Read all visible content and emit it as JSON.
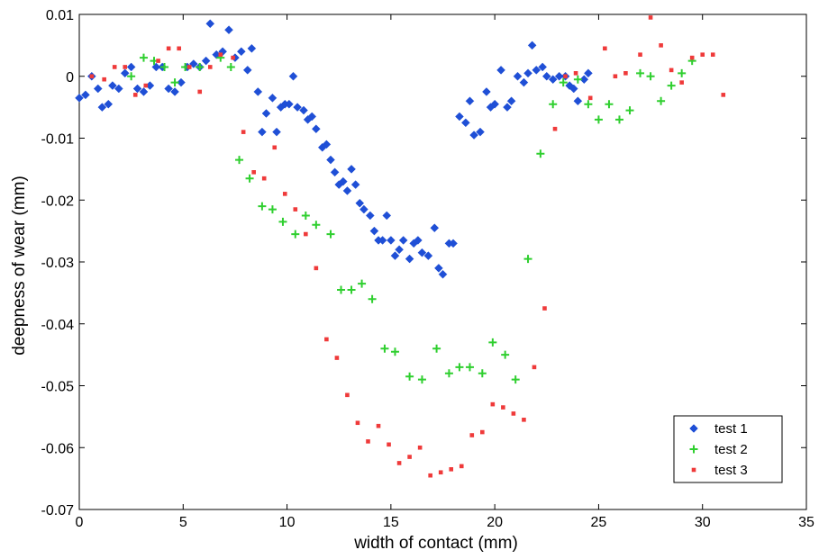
{
  "chart_data": {
    "type": "scatter",
    "title": "",
    "xlabel": "width of contact (mm)",
    "ylabel": "deepness of wear (mm)",
    "xlim": [
      0,
      35
    ],
    "ylim": [
      -0.07,
      0.01
    ],
    "xticks": [
      0,
      5,
      10,
      15,
      20,
      25,
      30,
      35
    ],
    "xtick_labels": [
      "0",
      "5",
      "10",
      "15",
      "20",
      "25",
      "30",
      "35"
    ],
    "yticks": [
      0.01,
      0,
      -0.01,
      -0.02,
      -0.03,
      -0.04,
      -0.05,
      -0.06,
      -0.07
    ],
    "ytick_labels": [
      "0.01",
      "0",
      "-0.01",
      "-0.02",
      "-0.03",
      "-0.04",
      "-0.05",
      "-0.06",
      "-0.07"
    ],
    "grid": false,
    "legend_position": "bottom-right",
    "series": [
      {
        "name": "test 1",
        "color": "#1f4fd6",
        "marker": "diamond",
        "points": [
          [
            0.0,
            -0.0035
          ],
          [
            0.3,
            -0.003
          ],
          [
            0.6,
            0.0
          ],
          [
            0.9,
            -0.002
          ],
          [
            1.1,
            -0.005
          ],
          [
            1.4,
            -0.0045
          ],
          [
            1.6,
            -0.0015
          ],
          [
            1.9,
            -0.002
          ],
          [
            2.2,
            0.0005
          ],
          [
            2.5,
            0.0015
          ],
          [
            2.8,
            -0.002
          ],
          [
            3.1,
            -0.0025
          ],
          [
            3.4,
            -0.0015
          ],
          [
            3.7,
            0.0015
          ],
          [
            4.0,
            0.0015
          ],
          [
            4.3,
            -0.002
          ],
          [
            4.6,
            -0.0025
          ],
          [
            4.9,
            -0.001
          ],
          [
            5.2,
            0.0015
          ],
          [
            5.5,
            0.002
          ],
          [
            5.8,
            0.0015
          ],
          [
            6.1,
            0.0025
          ],
          [
            6.3,
            0.0085
          ],
          [
            6.6,
            0.0035
          ],
          [
            6.9,
            0.004
          ],
          [
            7.2,
            0.0075
          ],
          [
            7.5,
            0.003
          ],
          [
            7.8,
            0.004
          ],
          [
            8.1,
            0.001
          ],
          [
            8.3,
            0.0045
          ],
          [
            8.6,
            -0.0025
          ],
          [
            8.8,
            -0.009
          ],
          [
            9.0,
            -0.006
          ],
          [
            9.3,
            -0.0035
          ],
          [
            9.5,
            -0.009
          ],
          [
            9.7,
            -0.005
          ],
          [
            9.9,
            -0.0045
          ],
          [
            10.1,
            -0.0045
          ],
          [
            10.3,
            0.0
          ],
          [
            10.5,
            -0.005
          ],
          [
            10.8,
            -0.0055
          ],
          [
            11.0,
            -0.007
          ],
          [
            11.2,
            -0.0065
          ],
          [
            11.4,
            -0.0085
          ],
          [
            11.7,
            -0.0115
          ],
          [
            11.9,
            -0.011
          ],
          [
            12.1,
            -0.0135
          ],
          [
            12.3,
            -0.0155
          ],
          [
            12.5,
            -0.0175
          ],
          [
            12.7,
            -0.017
          ],
          [
            12.9,
            -0.0185
          ],
          [
            13.1,
            -0.015
          ],
          [
            13.3,
            -0.0175
          ],
          [
            13.5,
            -0.0205
          ],
          [
            13.7,
            -0.0215
          ],
          [
            14.0,
            -0.0225
          ],
          [
            14.2,
            -0.025
          ],
          [
            14.4,
            -0.0265
          ],
          [
            14.6,
            -0.0265
          ],
          [
            14.8,
            -0.0225
          ],
          [
            15.0,
            -0.0265
          ],
          [
            15.2,
            -0.029
          ],
          [
            15.4,
            -0.028
          ],
          [
            15.6,
            -0.0265
          ],
          [
            15.9,
            -0.0295
          ],
          [
            16.1,
            -0.027
          ],
          [
            16.3,
            -0.0265
          ],
          [
            16.5,
            -0.0285
          ],
          [
            16.8,
            -0.029
          ],
          [
            17.1,
            -0.0245
          ],
          [
            17.3,
            -0.031
          ],
          [
            17.5,
            -0.032
          ],
          [
            17.8,
            -0.027
          ],
          [
            18.0,
            -0.027
          ],
          [
            18.3,
            -0.0065
          ],
          [
            18.6,
            -0.0075
          ],
          [
            18.8,
            -0.004
          ],
          [
            19.0,
            -0.0095
          ],
          [
            19.3,
            -0.009
          ],
          [
            19.6,
            -0.0025
          ],
          [
            19.8,
            -0.005
          ],
          [
            20.0,
            -0.0045
          ],
          [
            20.3,
            0.001
          ],
          [
            20.6,
            -0.005
          ],
          [
            20.8,
            -0.004
          ],
          [
            21.1,
            0.0
          ],
          [
            21.4,
            -0.001
          ],
          [
            21.6,
            0.0005
          ],
          [
            21.8,
            0.005
          ],
          [
            22.0,
            0.001
          ],
          [
            22.3,
            0.0015
          ],
          [
            22.5,
            0.0
          ],
          [
            22.8,
            -0.0005
          ],
          [
            23.1,
            0.0
          ],
          [
            23.4,
            0.0
          ],
          [
            23.6,
            -0.0015
          ],
          [
            23.8,
            -0.002
          ],
          [
            24.0,
            -0.004
          ],
          [
            24.3,
            -0.0005
          ],
          [
            24.5,
            0.0005
          ]
        ]
      },
      {
        "name": "test 2",
        "color": "#2fcf2f",
        "marker": "plus",
        "points": [
          [
            2.5,
            0.0
          ],
          [
            3.1,
            0.003
          ],
          [
            3.6,
            0.0025
          ],
          [
            4.1,
            0.0015
          ],
          [
            4.6,
            -0.001
          ],
          [
            5.1,
            0.0015
          ],
          [
            5.8,
            0.0015
          ],
          [
            6.8,
            0.003
          ],
          [
            7.3,
            0.0015
          ],
          [
            7.7,
            -0.0135
          ],
          [
            8.2,
            -0.0165
          ],
          [
            8.8,
            -0.021
          ],
          [
            9.3,
            -0.0215
          ],
          [
            9.8,
            -0.0235
          ],
          [
            10.4,
            -0.0255
          ],
          [
            10.9,
            -0.0225
          ],
          [
            11.4,
            -0.024
          ],
          [
            12.1,
            -0.0255
          ],
          [
            12.6,
            -0.0345
          ],
          [
            13.1,
            -0.0345
          ],
          [
            13.6,
            -0.0335
          ],
          [
            14.1,
            -0.036
          ],
          [
            14.7,
            -0.044
          ],
          [
            15.2,
            -0.0445
          ],
          [
            15.9,
            -0.0485
          ],
          [
            16.5,
            -0.049
          ],
          [
            17.2,
            -0.044
          ],
          [
            17.8,
            -0.048
          ],
          [
            18.3,
            -0.047
          ],
          [
            18.8,
            -0.047
          ],
          [
            19.4,
            -0.048
          ],
          [
            19.9,
            -0.043
          ],
          [
            20.5,
            -0.045
          ],
          [
            21.0,
            -0.049
          ],
          [
            21.6,
            -0.0295
          ],
          [
            22.2,
            -0.0125
          ],
          [
            22.8,
            -0.0045
          ],
          [
            23.3,
            -0.001
          ],
          [
            24.0,
            -0.0005
          ],
          [
            24.5,
            -0.0045
          ],
          [
            25.0,
            -0.007
          ],
          [
            25.5,
            -0.0045
          ],
          [
            26.0,
            -0.007
          ],
          [
            26.5,
            -0.0055
          ],
          [
            27.0,
            0.0005
          ],
          [
            27.5,
            0.0
          ],
          [
            28.0,
            -0.004
          ],
          [
            28.5,
            -0.0015
          ],
          [
            29.0,
            0.0005
          ],
          [
            29.5,
            0.0025
          ]
        ]
      },
      {
        "name": "test 3",
        "color": "#ef3a3a",
        "marker": "square",
        "points": [
          [
            0.6,
            0.0
          ],
          [
            1.2,
            -0.0005
          ],
          [
            1.7,
            0.0015
          ],
          [
            2.2,
            0.0015
          ],
          [
            2.7,
            -0.003
          ],
          [
            3.2,
            -0.0015
          ],
          [
            3.8,
            0.0025
          ],
          [
            4.3,
            0.0045
          ],
          [
            4.8,
            0.0045
          ],
          [
            5.3,
            0.0015
          ],
          [
            5.8,
            -0.0025
          ],
          [
            6.3,
            0.0015
          ],
          [
            6.8,
            0.0035
          ],
          [
            7.4,
            0.003
          ],
          [
            7.9,
            -0.009
          ],
          [
            8.4,
            -0.0155
          ],
          [
            8.9,
            -0.0165
          ],
          [
            9.4,
            -0.0115
          ],
          [
            9.9,
            -0.019
          ],
          [
            10.4,
            -0.0215
          ],
          [
            10.9,
            -0.0255
          ],
          [
            11.4,
            -0.031
          ],
          [
            11.9,
            -0.0425
          ],
          [
            12.4,
            -0.0455
          ],
          [
            12.9,
            -0.0515
          ],
          [
            13.4,
            -0.056
          ],
          [
            13.9,
            -0.059
          ],
          [
            14.4,
            -0.0565
          ],
          [
            14.9,
            -0.0595
          ],
          [
            15.4,
            -0.0625
          ],
          [
            15.9,
            -0.0615
          ],
          [
            16.4,
            -0.06
          ],
          [
            16.9,
            -0.0645
          ],
          [
            17.4,
            -0.064
          ],
          [
            17.9,
            -0.0635
          ],
          [
            18.4,
            -0.063
          ],
          [
            18.9,
            -0.058
          ],
          [
            19.4,
            -0.0575
          ],
          [
            19.9,
            -0.053
          ],
          [
            20.4,
            -0.0535
          ],
          [
            20.9,
            -0.0545
          ],
          [
            21.4,
            -0.0555
          ],
          [
            21.9,
            -0.047
          ],
          [
            22.4,
            -0.0375
          ],
          [
            22.9,
            -0.0085
          ],
          [
            23.4,
            0.0
          ],
          [
            23.9,
            0.0005
          ],
          [
            24.6,
            -0.0035
          ],
          [
            25.3,
            0.0045
          ],
          [
            25.8,
            0.0
          ],
          [
            26.3,
            0.0005
          ],
          [
            27.0,
            0.0035
          ],
          [
            27.5,
            0.0095
          ],
          [
            28.0,
            0.005
          ],
          [
            28.5,
            0.001
          ],
          [
            29.0,
            -0.001
          ],
          [
            29.5,
            0.003
          ],
          [
            30.0,
            0.0035
          ],
          [
            30.5,
            0.0035
          ],
          [
            31.0,
            -0.003
          ]
        ]
      }
    ]
  }
}
